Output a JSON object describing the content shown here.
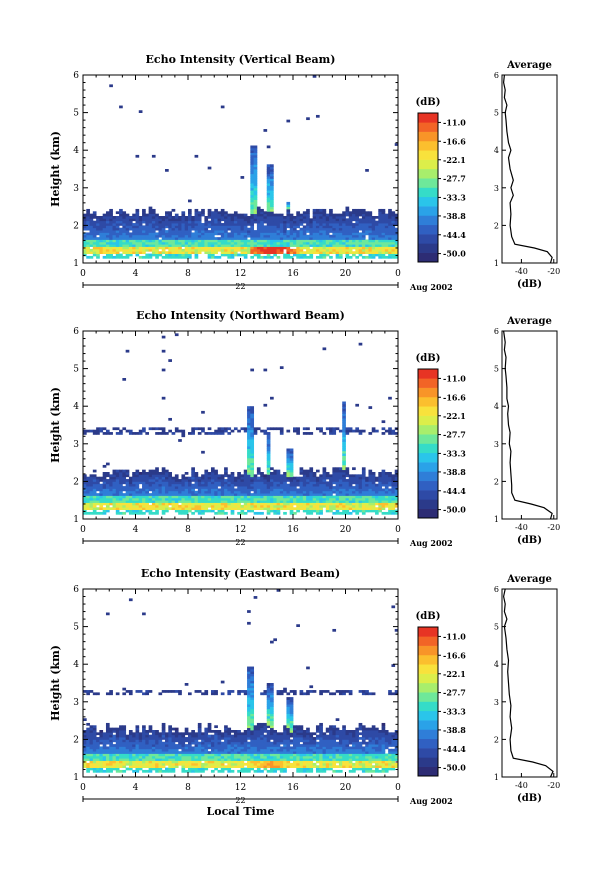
{
  "chart_data": {
    "type": "heatmap",
    "shared": {
      "ylabel": "Height (km)",
      "y_ticks": [
        "1",
        "2",
        "3",
        "4",
        "5",
        "6"
      ],
      "ylim": [
        1,
        6
      ],
      "x_ticks": [
        "0",
        "4",
        "8",
        "12",
        "16",
        "20",
        "0"
      ],
      "xlim": [
        0,
        24
      ],
      "day_label": "22",
      "month_label": "Aug 2002",
      "xlabel": "Local Time",
      "colorbar_unit": "(dB)",
      "colorbar_ticks": [
        "-11.0",
        "-16.6",
        "-22.1",
        "-27.7",
        "-33.3",
        "-38.8",
        "-44.4",
        "-50.0"
      ],
      "colorbar_range": [
        -52.5,
        -8.2
      ],
      "colors": [
        "#2d2c74",
        "#2b3a8a",
        "#2e4aa6",
        "#3060c2",
        "#2f7ed8",
        "#2aa2e8",
        "#2ac5ea",
        "#35dcc8",
        "#6ee89a",
        "#a8ee6c",
        "#dcee4a",
        "#f8e23c",
        "#fbbf2e",
        "#f89428",
        "#f26426",
        "#e73424"
      ],
      "avg_title": "Average",
      "avg_xlabel": "(dB)",
      "avg_xticks": [
        "-40",
        "-20"
      ],
      "avg_xlim": [
        -52,
        -18
      ]
    },
    "panels": [
      {
        "title": "Echo Intensity (Vertical Beam)",
        "seed": 11,
        "layer_top": 2.35,
        "upper_layer": null,
        "spikes": [
          {
            "t": 12.9,
            "top": 4.15,
            "w": 0.55
          },
          {
            "t": 14.3,
            "top": 3.6,
            "w": 0.5
          },
          {
            "t": 15.6,
            "top": 2.65,
            "w": 0.35
          }
        ],
        "bright_band": {
          "t0": 12.8,
          "t1": 16.4,
          "peak_t": 14.3,
          "peak_db": -10
        },
        "average_profile": [
          [
            1.0,
            -22
          ],
          [
            1.15,
            -21
          ],
          [
            1.3,
            -24
          ],
          [
            1.4,
            -32
          ],
          [
            1.5,
            -44
          ],
          [
            1.7,
            -46
          ],
          [
            2.0,
            -47
          ],
          [
            2.3,
            -46.5
          ],
          [
            2.6,
            -47
          ],
          [
            2.8,
            -45
          ],
          [
            3.0,
            -46.5
          ],
          [
            3.2,
            -45
          ],
          [
            3.5,
            -47
          ],
          [
            3.8,
            -48
          ],
          [
            4.0,
            -46.5
          ],
          [
            4.2,
            -48
          ],
          [
            4.5,
            -49
          ],
          [
            4.8,
            -49.5
          ],
          [
            5.0,
            -50
          ],
          [
            5.2,
            -49
          ],
          [
            5.4,
            -50.5
          ],
          [
            5.6,
            -50
          ],
          [
            5.8,
            -51
          ],
          [
            6.0,
            -50.5
          ]
        ]
      },
      {
        "title": "Echo Intensity (Northward Beam)",
        "seed": 23,
        "layer_top": 2.25,
        "upper_layer": 3.35,
        "spikes": [
          {
            "t": 12.8,
            "top": 4.0,
            "w": 0.45
          },
          {
            "t": 14.1,
            "top": 3.3,
            "w": 0.4
          },
          {
            "t": 15.8,
            "top": 2.9,
            "w": 0.4
          },
          {
            "t": 19.8,
            "top": 4.1,
            "w": 0.35
          }
        ],
        "bright_band": {
          "t0": 2.5,
          "t1": 16.5,
          "peak_t": 9.5,
          "peak_db": -24
        },
        "average_profile": [
          [
            1.0,
            -22
          ],
          [
            1.15,
            -21
          ],
          [
            1.3,
            -26
          ],
          [
            1.4,
            -34
          ],
          [
            1.5,
            -44
          ],
          [
            1.7,
            -46
          ],
          [
            1.9,
            -46
          ],
          [
            2.2,
            -46.5
          ],
          [
            2.5,
            -47
          ],
          [
            2.8,
            -46.5
          ],
          [
            3.0,
            -47.5
          ],
          [
            3.3,
            -47
          ],
          [
            3.5,
            -48
          ],
          [
            3.8,
            -48.5
          ],
          [
            4.0,
            -48
          ],
          [
            4.2,
            -49
          ],
          [
            4.5,
            -49
          ],
          [
            4.8,
            -49.5
          ],
          [
            5.0,
            -50
          ],
          [
            5.3,
            -49.5
          ],
          [
            5.5,
            -50.5
          ],
          [
            5.7,
            -50
          ],
          [
            6.0,
            -51
          ]
        ]
      },
      {
        "title": "Echo Intensity (Eastward Beam)",
        "seed": 37,
        "layer_top": 2.3,
        "upper_layer": 3.25,
        "spikes": [
          {
            "t": 12.85,
            "top": 3.95,
            "w": 0.45
          },
          {
            "t": 14.3,
            "top": 3.5,
            "w": 0.45
          },
          {
            "t": 15.7,
            "top": 3.1,
            "w": 0.4
          }
        ],
        "bright_band": {
          "t0": 3.0,
          "t1": 17.0,
          "peak_t": 14.4,
          "peak_db": -18
        },
        "average_profile": [
          [
            1.0,
            -22
          ],
          [
            1.15,
            -20.5
          ],
          [
            1.3,
            -25
          ],
          [
            1.4,
            -33
          ],
          [
            1.5,
            -45
          ],
          [
            1.7,
            -46.5
          ],
          [
            2.0,
            -47
          ],
          [
            2.3,
            -46
          ],
          [
            2.6,
            -47
          ],
          [
            2.9,
            -46.5
          ],
          [
            3.2,
            -47.5
          ],
          [
            3.5,
            -48
          ],
          [
            3.8,
            -48.5
          ],
          [
            4.1,
            -48
          ],
          [
            4.4,
            -49
          ],
          [
            4.7,
            -49.5
          ],
          [
            5.0,
            -50.5
          ],
          [
            5.2,
            -49
          ],
          [
            5.4,
            -50.5
          ],
          [
            5.6,
            -50
          ],
          [
            5.8,
            -51
          ],
          [
            6.0,
            -50
          ]
        ]
      }
    ]
  }
}
